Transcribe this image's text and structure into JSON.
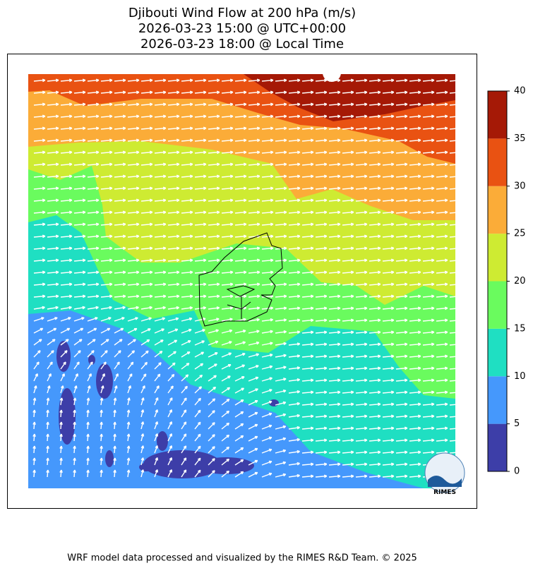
{
  "title": [
    "Djibouti Wind Flow at 200 hPa (m/s)",
    "2026-03-23 15:00 @ UTC+00:00",
    "2026-03-23 18:00 @ Local Time"
  ],
  "colorbar": {
    "ticks": [
      0,
      5,
      10,
      15,
      20,
      25,
      30,
      35,
      40
    ],
    "colors": [
      "#3d3ea8",
      "#4598fc",
      "#1fdfc2",
      "#6afb5e",
      "#ceeb32",
      "#fbac38",
      "#e95212",
      "#a51906"
    ]
  },
  "logo_text": "RIMES",
  "footer": "WRF model data processed and visualized by the RIMES R&D Team. © 2025"
}
